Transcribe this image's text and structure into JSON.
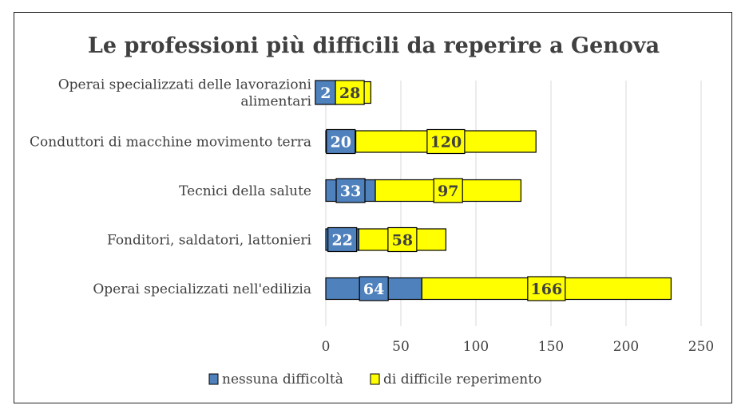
{
  "chart_data": {
    "type": "bar",
    "stacked": true,
    "orientation": "horizontal",
    "title": "Le professioni più difficili da reperire a Genova",
    "categories": [
      [
        "Operai specializzati delle lavorazioni",
        "alimentari"
      ],
      [
        "Conduttori di macchine movimento terra"
      ],
      [
        "Tecnici della salute"
      ],
      [
        "Fonditori, saldatori, lattonieri"
      ],
      [
        "Operai specializzati nell'edilizia"
      ]
    ],
    "series": [
      {
        "name": "nessuna difficoltà",
        "values": [
          2,
          20,
          33,
          22,
          64
        ],
        "color": "#4f81bd"
      },
      {
        "name": "di difficile reperimento",
        "values": [
          28,
          120,
          97,
          58,
          166
        ],
        "color": "#ffff00"
      }
    ],
    "xlim": [
      0,
      250
    ],
    "xticks": [
      0,
      50,
      100,
      150,
      200,
      250
    ],
    "grid": true,
    "legend_position": "bottom",
    "data_labels": true
  }
}
